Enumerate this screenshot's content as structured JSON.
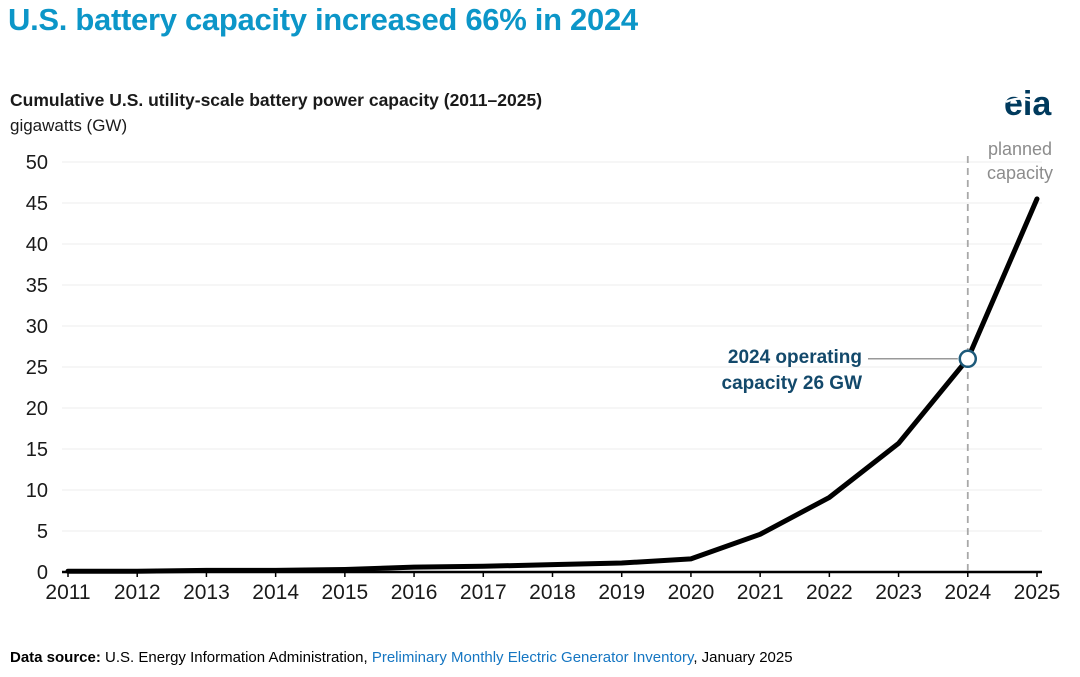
{
  "page": {
    "title": "U.S. battery capacity increased 66% in 2024",
    "subtitle": "Cumulative U.S. utility-scale battery power capacity (2011–2025)",
    "units": "gigawatts (GW)",
    "logo_text": "eia"
  },
  "annotation": {
    "line1": "2024 operating",
    "line2": "capacity 26 GW"
  },
  "planned": {
    "line1": "planned",
    "line2": "capacity"
  },
  "footer": {
    "label": "Data source:",
    "text_before": " U.S. Energy Information Administration, ",
    "link": "Preliminary Monthly Electric Generator Inventory",
    "text_after": ", January 2025"
  },
  "colors": {
    "title": "#0c96c8",
    "line": "#000000",
    "annotation": "#13496b",
    "marker_stroke": "#1d5a7a",
    "planned": "#8c8c8c",
    "dashed_line": "#a8a8a8",
    "link": "#1576c2",
    "logo": "#003a5d",
    "gridline": "#ececec",
    "axis": "#000000"
  },
  "chart_data": {
    "type": "line",
    "title": "Cumulative U.S. utility-scale battery power capacity (2011–2025)",
    "xlabel": "",
    "ylabel": "gigawatts (GW)",
    "x": [
      2011,
      2012,
      2013,
      2014,
      2015,
      2016,
      2017,
      2018,
      2019,
      2020,
      2021,
      2022,
      2023,
      2024,
      2025
    ],
    "values": [
      0.1,
      0.1,
      0.2,
      0.2,
      0.3,
      0.6,
      0.7,
      0.9,
      1.1,
      1.6,
      4.6,
      9.1,
      15.7,
      26,
      45.5
    ],
    "ylim": [
      0,
      50
    ],
    "ytick_step": 5,
    "grid": true,
    "legend": "none",
    "annotation": {
      "x": 2024,
      "y": 26,
      "label": "2024 operating capacity 26 GW"
    },
    "planned_divider_x": 2024,
    "planned_label": "planned capacity"
  }
}
